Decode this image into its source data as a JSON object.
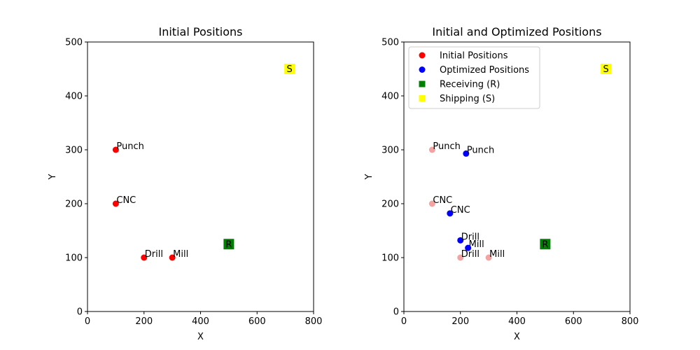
{
  "chart_data": [
    {
      "type": "scatter",
      "title": "Initial Positions",
      "xlabel": "X",
      "ylabel": "Y",
      "xlim": [
        0,
        800
      ],
      "ylim": [
        0,
        500
      ],
      "xticks": [
        0,
        200,
        400,
        600,
        800
      ],
      "yticks": [
        0,
        100,
        200,
        300,
        400,
        500
      ],
      "grid": false,
      "points": [
        {
          "label": "Punch",
          "x": 100,
          "y": 300,
          "color": "#ff0000"
        },
        {
          "label": "CNC",
          "x": 100,
          "y": 200,
          "color": "#ff0000"
        },
        {
          "label": "Drill",
          "x": 200,
          "y": 100,
          "color": "#ff0000"
        },
        {
          "label": "Mill",
          "x": 300,
          "y": 100,
          "color": "#ff0000"
        }
      ],
      "squares": [
        {
          "label": "R",
          "x": 500,
          "y": 125,
          "color": "#008000"
        },
        {
          "label": "S",
          "x": 715,
          "y": 450,
          "color": "#ffff00"
        }
      ]
    },
    {
      "type": "scatter",
      "title": "Initial and Optimized Positions",
      "xlabel": "X",
      "ylabel": "Y",
      "xlim": [
        0,
        800
      ],
      "ylim": [
        0,
        500
      ],
      "xticks": [
        0,
        200,
        400,
        600,
        800
      ],
      "yticks": [
        0,
        100,
        200,
        300,
        400,
        500
      ],
      "grid": false,
      "legend_position": "top-left",
      "legend": [
        {
          "label": "Initial Positions",
          "marker": "circle",
          "color": "#ff0000"
        },
        {
          "label": "Optimized Positions",
          "marker": "circle",
          "color": "#0000ff"
        },
        {
          "label": "Receiving (R)",
          "marker": "square",
          "color": "#008000"
        },
        {
          "label": "Shipping (S)",
          "marker": "square",
          "color": "#ffff00"
        }
      ],
      "initial_points": [
        {
          "label": "Punch",
          "x": 100,
          "y": 300,
          "color": "#f4a3a3"
        },
        {
          "label": "CNC",
          "x": 100,
          "y": 200,
          "color": "#f4a3a3"
        },
        {
          "label": "Drill",
          "x": 200,
          "y": 100,
          "color": "#f4a3a3"
        },
        {
          "label": "Mill",
          "x": 300,
          "y": 100,
          "color": "#f4a3a3"
        }
      ],
      "optimized_points": [
        {
          "label": "Punch",
          "x": 220,
          "y": 293,
          "color": "#0000ff"
        },
        {
          "label": "CNC",
          "x": 163,
          "y": 182,
          "color": "#0000ff"
        },
        {
          "label": "Drill",
          "x": 200,
          "y": 132,
          "color": "#0000ff"
        },
        {
          "label": "Mill",
          "x": 227,
          "y": 118,
          "color": "#0000ff"
        }
      ],
      "squares": [
        {
          "label": "R",
          "x": 500,
          "y": 125,
          "color": "#008000"
        },
        {
          "label": "S",
          "x": 715,
          "y": 450,
          "color": "#ffff00"
        }
      ]
    }
  ]
}
